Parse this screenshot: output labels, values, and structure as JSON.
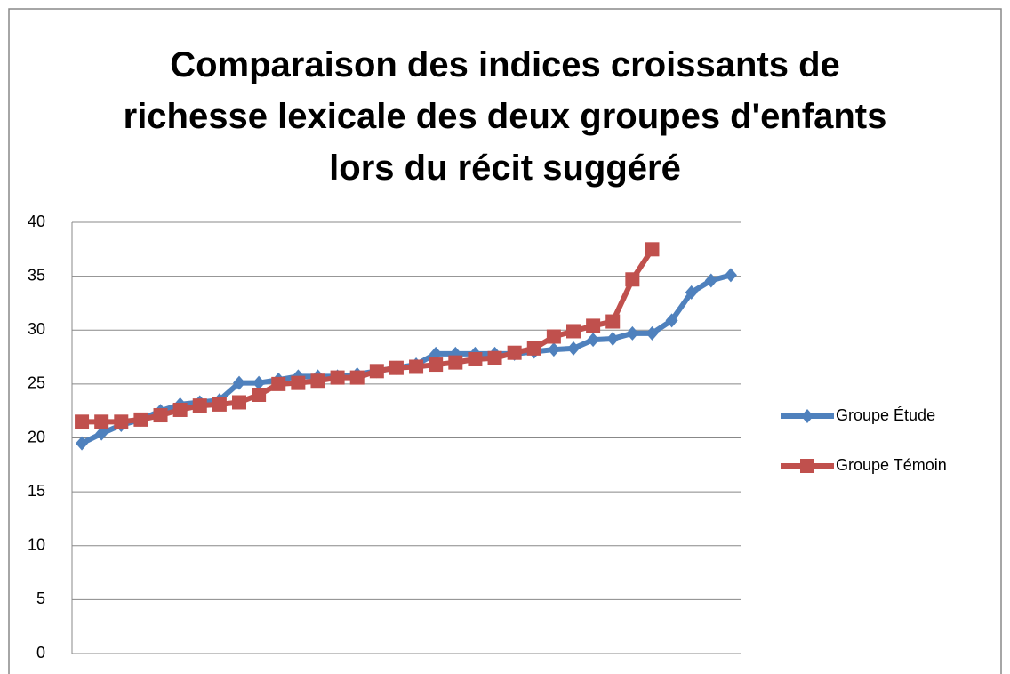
{
  "chart_data": {
    "type": "line",
    "title": "Comparaison des indices croissants de\nrichesse lexicale des deux groupes d'enfants\nlors du récit suggéré",
    "categories": [
      null,
      null,
      null,
      null,
      null,
      null,
      null,
      null,
      null,
      null,
      null,
      null,
      null,
      null,
      null,
      null,
      null,
      null,
      null,
      null,
      null,
      null,
      null,
      null,
      null,
      null,
      null,
      null,
      null,
      null,
      null,
      null,
      null,
      null
    ],
    "series": [
      {
        "name": "Groupe Étude",
        "color": "#4f81bd",
        "marker": "diamond",
        "values": [
          19.5,
          20.4,
          21.2,
          21.7,
          22.5,
          23.1,
          23.3,
          23.5,
          25.1,
          25.1,
          25.4,
          25.7,
          25.7,
          25.7,
          25.9,
          26.2,
          26.5,
          26.8,
          27.8,
          27.8,
          27.8,
          27.8,
          27.8,
          28.0,
          28.2,
          28.3,
          29.1,
          29.2,
          29.7,
          29.7,
          30.9,
          33.5,
          34.6,
          35.1
        ]
      },
      {
        "name": "Groupe Témoin",
        "color": "#c0504d",
        "marker": "square",
        "values": [
          21.5,
          21.5,
          21.5,
          21.7,
          22.1,
          22.6,
          23.0,
          23.1,
          23.3,
          24.0,
          25.0,
          25.1,
          25.3,
          25.6,
          25.6,
          26.2,
          26.5,
          26.6,
          26.8,
          27.0,
          27.3,
          27.4,
          27.9,
          28.3,
          29.4,
          29.9,
          30.4,
          30.8,
          34.7,
          37.5,
          null,
          null,
          null,
          null
        ]
      }
    ],
    "ylim": [
      0,
      40
    ],
    "yticks": [
      0,
      5,
      10,
      15,
      20,
      25,
      30,
      35,
      40
    ],
    "grid": true,
    "legend": "right"
  }
}
